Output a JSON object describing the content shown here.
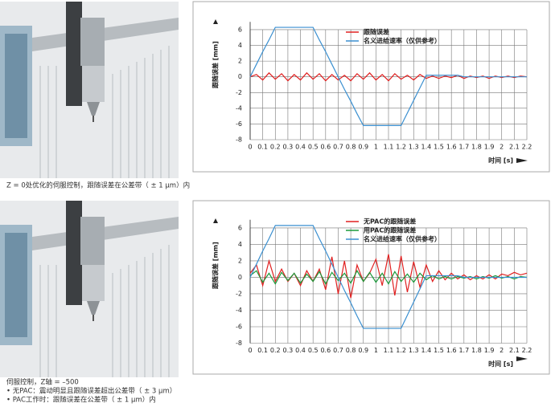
{
  "chart_data": [
    {
      "type": "line",
      "ylabel": "跟随误差 [mm]",
      "xlabel": "时间 [s]",
      "x": [
        0,
        0.05,
        0.1,
        0.15,
        0.2,
        0.25,
        0.3,
        0.35,
        0.4,
        0.45,
        0.5,
        0.55,
        0.6,
        0.65,
        0.7,
        0.75,
        0.8,
        0.85,
        0.9,
        0.95,
        1,
        1.05,
        1.1,
        1.15,
        1.2,
        1.25,
        1.3,
        1.35,
        1.4,
        1.45,
        1.5,
        1.55,
        1.6,
        1.65,
        1.7,
        1.75,
        1.8,
        1.85,
        1.9,
        1.95,
        2,
        2.05,
        2.1,
        2.15,
        2.2
      ],
      "series": [
        {
          "name": "跟随误差",
          "color": "#e02020",
          "values": [
            0,
            0.3,
            -0.4,
            0.5,
            -0.3,
            0.4,
            -0.5,
            0.3,
            -0.4,
            0.5,
            -0.3,
            0.4,
            -0.5,
            0.3,
            -0.4,
            0.2,
            -0.5,
            0.4,
            -0.3,
            0.5,
            -0.4,
            0.3,
            -0.5,
            0.4,
            -0.3,
            0.2,
            -0.4,
            0.3,
            -0.2,
            0.1,
            -0.2,
            0.1,
            -0.1,
            0.2,
            -0.2,
            0.1,
            -0.1,
            0.1,
            -0.2,
            0.1,
            -0.1,
            0.1,
            -0.1,
            0.1,
            0
          ]
        },
        {
          "name": "名义进给速率（仅供参考）",
          "color": "#3a8fd0",
          "values": [
            0,
            1.6,
            3.2,
            4.7,
            6.3,
            6.3,
            6.3,
            6.3,
            6.3,
            6.3,
            6.3,
            4.7,
            3.2,
            1.6,
            0,
            -1.6,
            -3.1,
            -4.7,
            -6.2,
            -6.2,
            -6.2,
            -6.2,
            -6.2,
            -6.2,
            -6.2,
            -4.6,
            -3,
            -1.4,
            0.2,
            0.2,
            0.2,
            0.2,
            0.2,
            0.2,
            0,
            0,
            0,
            0,
            0,
            0,
            0,
            0,
            0,
            0,
            0
          ]
        }
      ],
      "xlim": [
        0,
        2.2
      ],
      "ylim": [
        -8,
        7
      ],
      "xticks": [
        0,
        0.1,
        0.2,
        0.3,
        0.4,
        0.5,
        0.6,
        0.7,
        0.8,
        0.9,
        1,
        1.1,
        1.2,
        1.3,
        1.4,
        1.5,
        1.6,
        1.7,
        1.8,
        1.9,
        2,
        2.1,
        2.2
      ],
      "yticks": [
        -8,
        -6,
        -4,
        -2,
        0,
        2,
        4,
        6
      ],
      "grid": true
    },
    {
      "type": "line",
      "ylabel": "跟随误差 [mm]",
      "xlabel": "时间 [s]",
      "x": [
        0,
        0.05,
        0.1,
        0.15,
        0.2,
        0.25,
        0.3,
        0.35,
        0.4,
        0.45,
        0.5,
        0.55,
        0.6,
        0.65,
        0.7,
        0.75,
        0.8,
        0.85,
        0.9,
        0.95,
        1,
        1.05,
        1.1,
        1.15,
        1.2,
        1.25,
        1.3,
        1.35,
        1.4,
        1.45,
        1.5,
        1.55,
        1.6,
        1.65,
        1.7,
        1.75,
        1.8,
        1.85,
        1.9,
        1.95,
        2,
        2.05,
        2.1,
        2.15,
        2.2
      ],
      "series": [
        {
          "name": "无PAC的跟随误差",
          "color": "#e02020",
          "values": [
            0.5,
            1.5,
            -1,
            2,
            -0.5,
            1,
            -0.5,
            0.5,
            -1,
            0.8,
            -0.5,
            1,
            -1.5,
            2.5,
            -2,
            2,
            -2.5,
            1.5,
            -0.5,
            0.5,
            2.2,
            -1,
            2.8,
            -2.2,
            2.6,
            -1.8,
            1.9,
            -1.2,
            1.5,
            -0.5,
            0.8,
            -0.3,
            0.5,
            -0.2,
            0.3,
            -0.3,
            0.2,
            -0.2,
            0.3,
            -0.2,
            0.4,
            0.2,
            0.6,
            0.3,
            0.5
          ]
        },
        {
          "name": "用PAC的跟随误差",
          "color": "#1a9a3a",
          "values": [
            0.2,
            0.8,
            -0.6,
            0.5,
            -0.8,
            0.6,
            -0.4,
            0.5,
            -0.7,
            0.4,
            -0.5,
            0.7,
            -0.8,
            0.6,
            -0.4,
            0.5,
            -0.7,
            0.8,
            -0.5,
            0.6,
            -0.6,
            0.5,
            -0.8,
            0.7,
            -0.5,
            0.4,
            -0.6,
            0.5,
            -0.3,
            0.2,
            -0.2,
            0.1,
            -0.2,
            0.1,
            -0.1,
            0.1,
            -0.2,
            0.1,
            -0.1,
            0.2,
            -0.1,
            0.1,
            -0.2,
            0.1,
            0
          ]
        },
        {
          "name": "名义进给速率（仅供参考）",
          "color": "#3a8fd0",
          "values": [
            0,
            1.6,
            3.2,
            4.7,
            6.3,
            6.3,
            6.3,
            6.3,
            6.3,
            6.3,
            6.3,
            4.7,
            3.2,
            1.6,
            0,
            -1.6,
            -3.1,
            -4.7,
            -6.2,
            -6.2,
            -6.2,
            -6.2,
            -6.2,
            -6.2,
            -6.2,
            -4.6,
            -3,
            -1.4,
            0.2,
            0.2,
            0.2,
            0.2,
            0.2,
            0.2,
            0,
            0,
            0,
            0,
            0,
            0,
            0,
            0,
            0,
            0,
            0
          ]
        }
      ],
      "xlim": [
        0,
        2.2
      ],
      "ylim": [
        -8,
        7
      ],
      "xticks": [
        0,
        0.1,
        0.2,
        0.3,
        0.4,
        0.5,
        0.6,
        0.7,
        0.8,
        0.9,
        1,
        1.1,
        1.2,
        1.3,
        1.4,
        1.5,
        1.6,
        1.7,
        1.8,
        1.9,
        2,
        2.1,
        2.2
      ],
      "yticks": [
        -8,
        -6,
        -4,
        -2,
        0,
        2,
        4,
        6
      ],
      "grid": true
    }
  ],
  "captions": {
    "first": "Z = 0处优化的伺服控制，跟随误差在公差带（ ± 1 μm）内",
    "second": [
      "伺服控制，Z轴 = –500",
      "• 无PAC：震动明显且跟随误差超出公差带（ ± 3 μm）",
      "• PAC工作时：跟随误差在公差带（ ± 1 μm）内"
    ]
  }
}
